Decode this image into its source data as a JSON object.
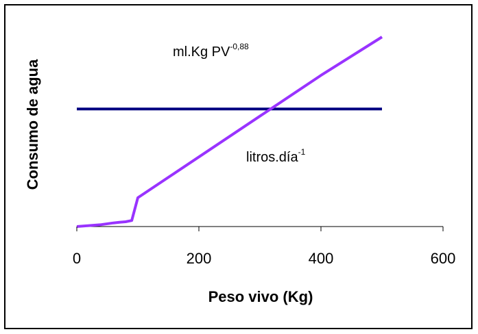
{
  "chart_data": {
    "type": "line",
    "title": "",
    "xlabel": "Peso vivo (Kg)",
    "ylabel": "Consumo de agua",
    "xlim": [
      0,
      600
    ],
    "x_ticks": [
      "0",
      "200",
      "400",
      "600"
    ],
    "y_ticks_shown": false,
    "grid": false,
    "legend": "none",
    "series": [
      {
        "name": "ml.Kg PV-0,88",
        "color": "#000080",
        "x": [
          0,
          100,
          200,
          300,
          400,
          500
        ],
        "y": [
          49,
          49,
          49,
          49,
          49,
          49
        ]
      },
      {
        "name": "litros.día-1",
        "color": "#9933FF",
        "x": [
          0,
          20,
          40,
          60,
          70,
          80,
          90,
          100,
          200,
          300,
          400,
          500
        ],
        "y": [
          0,
          0.4,
          0.8,
          1.5,
          1.8,
          2,
          2.5,
          12,
          29,
          46,
          63,
          79
        ]
      }
    ],
    "annotations": [
      {
        "base": "ml.Kg PV",
        "sup": "-0,88"
      },
      {
        "base": "litros.día",
        "sup": "-1"
      }
    ]
  }
}
